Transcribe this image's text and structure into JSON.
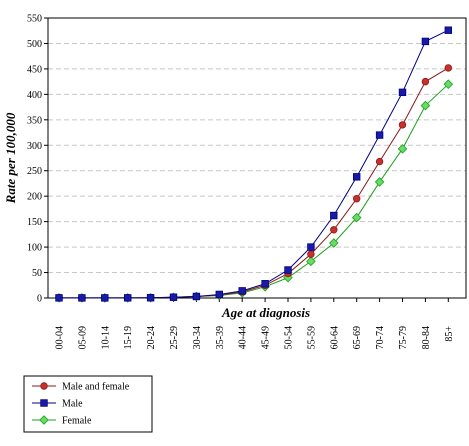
{
  "chart_data": {
    "type": "line",
    "title": "",
    "xlabel": "Age at diagnosis",
    "ylabel": "Rate per 100,000",
    "ylim": [
      0,
      550
    ],
    "yticks": [
      "0",
      "50",
      "100",
      "150",
      "200",
      "250",
      "300",
      "350",
      "400",
      "450",
      "500",
      "550"
    ],
    "categories": [
      "00-04",
      "05-09",
      "10-14",
      "15-19",
      "20-24",
      "25-29",
      "30-34",
      "35-39",
      "40-44",
      "45-49",
      "50-54",
      "55-59",
      "60-64",
      "65-69",
      "70-74",
      "75-79",
      "80-84",
      "85+"
    ],
    "grid": true,
    "legend_position": "bottom-left",
    "series": [
      {
        "name": "Male and female",
        "color": "#8b1a1a",
        "fill": "#c8302a",
        "marker": "circle",
        "values": [
          0.3,
          0.2,
          0.2,
          0.3,
          0.5,
          1.5,
          3,
          6,
          12,
          25,
          48,
          86,
          134,
          195,
          268,
          340,
          425,
          452
        ]
      },
      {
        "name": "Male",
        "color": "#000080",
        "fill": "#1a1aa8",
        "marker": "square",
        "values": [
          0.3,
          0.2,
          0.2,
          0.3,
          0.5,
          1.5,
          3,
          7,
          14,
          28,
          55,
          100,
          162,
          238,
          320,
          404,
          504,
          526
        ]
      },
      {
        "name": "Female",
        "color": "#1aa01a",
        "fill": "#66dd66",
        "marker": "diamond",
        "values": [
          0.3,
          0.2,
          0.2,
          0.3,
          0.5,
          1.5,
          3,
          5,
          10,
          22,
          40,
          72,
          108,
          158,
          228,
          293,
          378,
          420
        ]
      }
    ]
  }
}
